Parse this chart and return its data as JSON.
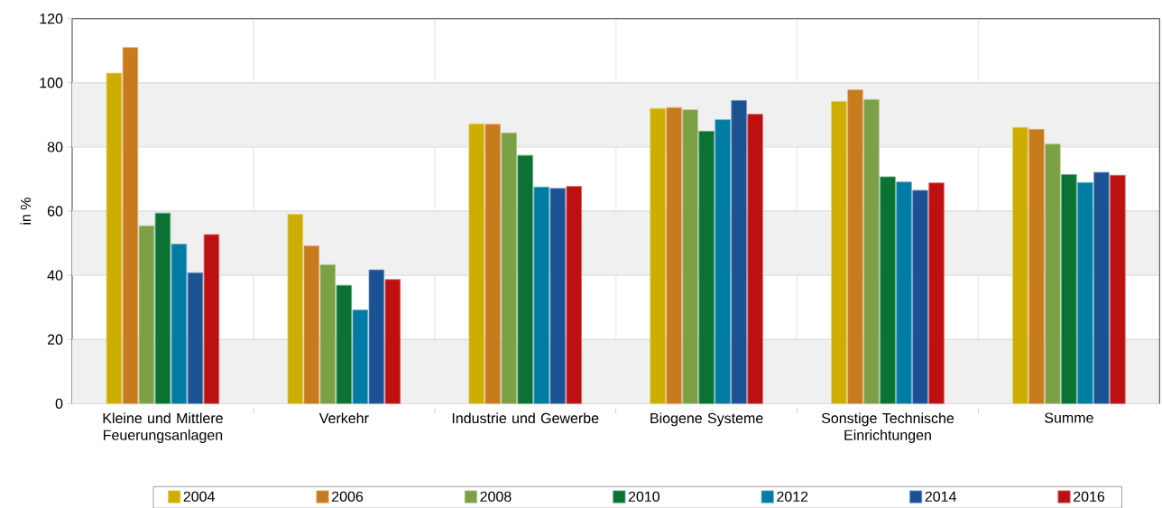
{
  "chart_data": {
    "type": "bar",
    "ylabel": "in %",
    "categories": [
      "Kleine und Mittlere Feuerungsanlagen",
      "Verkehr",
      "Industrie und Gewerbe",
      "Biogene Systeme",
      "Sonstige Technische Einrichtungen",
      "Summe"
    ],
    "series": [
      {
        "name": "2004",
        "color": "#ccad00",
        "values": [
          103,
          59,
          87.2,
          92.0,
          94.2,
          86.1
        ]
      },
      {
        "name": "2006",
        "color": "#c87a1e",
        "values": [
          111,
          49.2,
          87.1,
          92.3,
          97.8,
          85.5
        ]
      },
      {
        "name": "2008",
        "color": "#7ba046",
        "values": [
          55.4,
          43.3,
          84.4,
          91.6,
          94.8,
          80.9
        ]
      },
      {
        "name": "2010",
        "color": "#0a7333",
        "values": [
          59.4,
          36.9,
          77.4,
          84.9,
          70.7,
          71.4
        ]
      },
      {
        "name": "2012",
        "color": "#007ba4",
        "values": [
          49.7,
          29.2,
          67.5,
          88.5,
          69.1,
          68.9
        ]
      },
      {
        "name": "2014",
        "color": "#1a5294",
        "values": [
          40.8,
          41.7,
          67.1,
          94.5,
          66.5,
          72.1
        ]
      },
      {
        "name": "2016",
        "color": "#bd1010",
        "values": [
          52.7,
          38.7,
          67.7,
          90.2,
          68.8,
          71.2
        ]
      }
    ],
    "ylim": [
      0,
      120
    ],
    "yticks": [
      0,
      20,
      40,
      60,
      80,
      100,
      120
    ],
    "grid": "y",
    "legend": "bottom"
  }
}
